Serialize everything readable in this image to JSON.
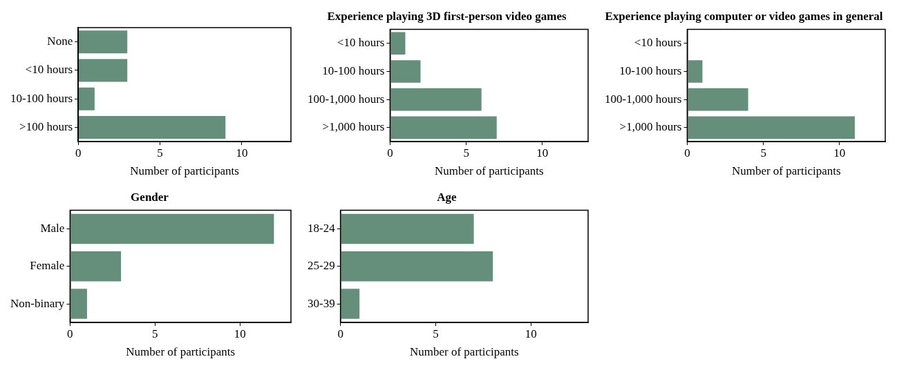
{
  "chart_data": [
    {
      "type": "bar",
      "orientation": "horizontal",
      "categories": [
        "None",
        "<10 hours",
        "10-100 hours",
        ">100 hours"
      ],
      "values": [
        3,
        3,
        1,
        9
      ],
      "color": "#668f7b",
      "xlabel": "Number of participants",
      "xlim": [
        0,
        13
      ],
      "xticks": [
        0,
        5,
        10
      ],
      "grid": false
    },
    {
      "type": "bar",
      "orientation": "horizontal",
      "title": "Experience playing 3D first-person video games",
      "categories": [
        "<10 hours",
        "10-100 hours",
        "100-1,000 hours",
        ">1,000 hours"
      ],
      "values": [
        1,
        2,
        6,
        7
      ],
      "color": "#668f7b",
      "xlabel": "Number of participants",
      "xlim": [
        0,
        13
      ],
      "xticks": [
        0,
        5,
        10
      ],
      "grid": false
    },
    {
      "type": "bar",
      "orientation": "horizontal",
      "title": "Experience playing computer or video games in general",
      "categories": [
        "<10 hours",
        "10-100 hours",
        "100-1,000 hours",
        ">1,000 hours"
      ],
      "values": [
        0,
        1,
        4,
        11
      ],
      "color": "#668f7b",
      "xlabel": "Number of participants",
      "xlim": [
        0,
        13
      ],
      "xticks": [
        0,
        5,
        10
      ],
      "grid": false
    },
    {
      "type": "bar",
      "orientation": "horizontal",
      "title": "Gender",
      "categories": [
        "Male",
        "Female",
        "Non-binary"
      ],
      "values": [
        12,
        3,
        1
      ],
      "color": "#668f7b",
      "xlabel": "Number of participants",
      "xlim": [
        0,
        13
      ],
      "xticks": [
        0,
        5,
        10
      ],
      "grid": false
    },
    {
      "type": "bar",
      "orientation": "horizontal",
      "title": "Age",
      "categories": [
        "18-24",
        "25-29",
        "30-39"
      ],
      "values": [
        7,
        8,
        1
      ],
      "color": "#668f7b",
      "xlabel": "Number of participants",
      "xlim": [
        0,
        13
      ],
      "xticks": [
        0,
        5,
        10
      ],
      "grid": false
    }
  ]
}
